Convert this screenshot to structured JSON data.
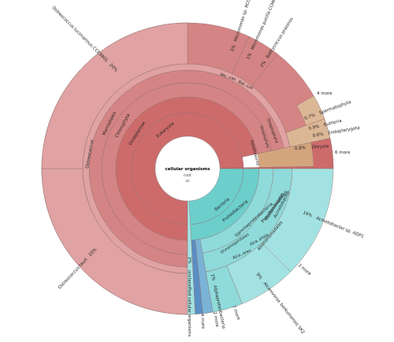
{
  "center": {
    "title": "cellular organisms",
    "subtitle": "root",
    "value": "all"
  },
  "colors": {
    "eukaryota_dark": "#cd6b6b",
    "eukaryota_mid": "#d48484",
    "eukaryota_light": "#e0a2a2",
    "bacteria_dark": "#6ccfcc",
    "bacteria_mid": "#8fdada",
    "bacteria_light": "#a3e2e2",
    "blue": "#7ab3d6",
    "blue_dark": "#5a8fc4",
    "tan": "#d4a57d",
    "tan_light": "#dcb796",
    "edge": "#8c6c6c"
  },
  "labels": {
    "eukaryota": "Eukaryota",
    "viridiplantae": "Viridiplantae",
    "chlorophyta": "Chlorophyta",
    "mamiellales": "Mamiellales",
    "ostreococcus": "Ostreococcus",
    "o_lucimarinus": "Ostreococcus lucimarinus CCE9901",
    "o_lucimarinus_pct": "20%",
    "o_tauri": "Ostreococcus tauri",
    "o_tauri_pct": "20%",
    "micromonas_genus_1": "Mic..nas",
    "micromonas_genus_2": "Bat..cus",
    "micromonas_sp": "Micromonas sp. RCC299",
    "micromonas_sp_pct": "3%",
    "micromonas_pusilla": "Micromonas pusilla CCMP1545",
    "micromonas_pusilla_pct": "1%",
    "bathycoccus": "Bathycoccus prasinos",
    "bathycoccus_pct": "2%",
    "streptophyta": "Streptophyta",
    "opisthokonta": "Opisthokonta",
    "spermatophyta": "Spermatophyta",
    "spermatophyta_pct": "0.7%",
    "more_4": "4 more",
    "eutheria": "Eutheria",
    "eutheria_pct": "0.9%",
    "endopterygota": "Endopterygota",
    "endopterygota_pct": "0.6%",
    "diatrya": "Ditrysia",
    "diatrya_pct": "0.8%",
    "more_6": "6 more",
    "bacteria": "Bacteria",
    "proteobacteria": "Proteobacteria",
    "gammaproteobacteria": "Gammaproteobacteria",
    "pseudomonadales": "Pseudomonadales",
    "moraxellaceae": "Moraxellaceae",
    "acinetobacter": "Acinetobacter",
    "acinetobacter_sp": "Acinetobacter sp. ADP1",
    "acinetobacter_sp_pct": "19%",
    "oceanospirillales": "Oceanospirillales",
    "alcanivorax_short": "Alca..orax",
    "alca_short2": "Alca..ensis",
    "alteromonadales": "Alteromonadales",
    "alcanivorax": "Alcanivorax borkumensis SK2",
    "alcanivorax_pct": "9%",
    "more_3": "3 more",
    "unclassified": "unclassified cellular organisms",
    "unclassified_pct": "2%",
    "more_4b": "4 more",
    "more_2": "2 more",
    "alphaproteobacteria": "Alphaproteobacteria",
    "alphaproteobacteria_pct": "1%",
    "more_7": "7 more"
  }
}
